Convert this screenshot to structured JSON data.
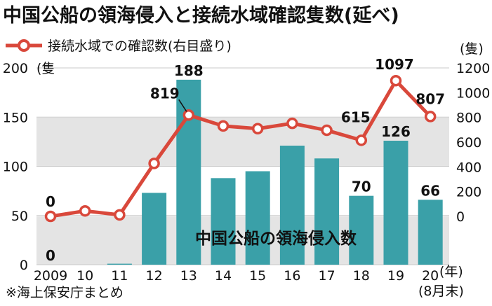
{
  "chart_data": {
    "type": "bar+line",
    "title": "中国公船の領海侵入と接続水域確認隻数(延べ)",
    "categories": [
      "2009",
      "10",
      "11",
      "12",
      "13",
      "14",
      "15",
      "16",
      "17",
      "18",
      "19",
      "20"
    ],
    "x_unit": "(年)",
    "x_last_note": "(8月末)",
    "series": [
      {
        "name": "中国公船の領海侵入数",
        "type": "bar",
        "axis": "left",
        "values": [
          0,
          0,
          1,
          73,
          188,
          88,
          95,
          121,
          108,
          70,
          126,
          66
        ],
        "labeled": {
          "0": "0",
          "4": "188",
          "9": "70",
          "10": "126",
          "11": "66"
        },
        "color": "#3aa0a8"
      },
      {
        "name": "接続水域での確認数(右目盛り)",
        "type": "line",
        "axis": "right",
        "values": [
          0,
          44,
          12,
          428,
          819,
          731,
          709,
          752,
          696,
          615,
          1097,
          807
        ],
        "labeled": {
          "0": "0",
          "4": "819",
          "9": "615",
          "10": "1097",
          "11": "807"
        },
        "color": "#d9483b"
      }
    ],
    "left_axis": {
      "unit": "(隻",
      "ylim": [
        0,
        200
      ],
      "ticks": [
        "0",
        "50",
        "100",
        "150",
        "200"
      ]
    },
    "right_axis": {
      "unit": "(隻)",
      "ylim": [
        0,
        1200
      ],
      "ticks": [
        "0",
        "200",
        "400",
        "600",
        "800",
        "1000",
        "1200"
      ]
    },
    "source_note": "※海上保安庁まとめ"
  }
}
